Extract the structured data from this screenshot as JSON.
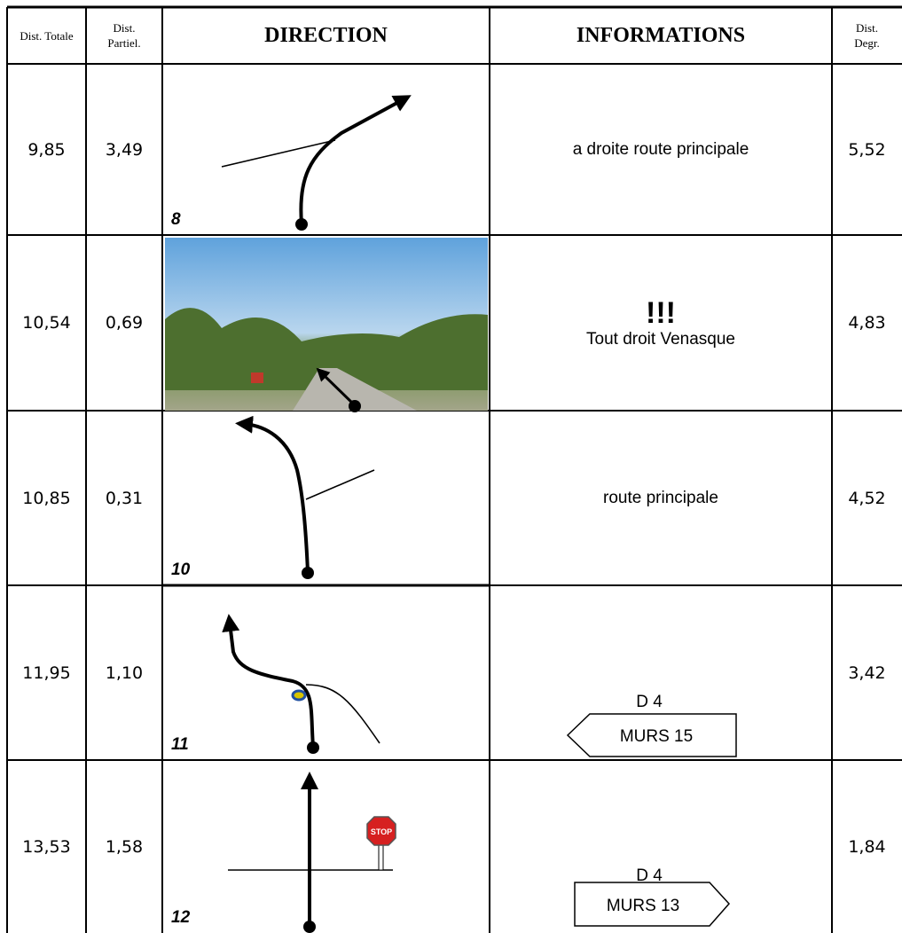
{
  "header": {
    "columns": [
      "Dist. Totale",
      "Dist. Partiel.",
      "DIRECTION",
      "INFORMATIONS",
      "Dist. Degr."
    ]
  },
  "rows": [
    {
      "total": "9,85",
      "partial": "3,49",
      "step": "8",
      "info": [
        "a droite route principale"
      ],
      "degr": "5,52"
    },
    {
      "total": "10,54",
      "partial": "0,69",
      "info": [
        "!!!",
        "Tout droit Venasque"
      ],
      "degr": "4,83"
    },
    {
      "total": "10,85",
      "partial": "0,31",
      "step": "10",
      "info": [
        "route principale"
      ],
      "degr": "4,52"
    },
    {
      "total": "11,95",
      "partial": "1,10",
      "step": "11",
      "info": [
        "D 4"
      ],
      "sign": "MURS 15",
      "degr": "3,42"
    },
    {
      "total": "13,53",
      "partial": "1,58",
      "step": "12",
      "info": [
        "D 4"
      ],
      "sign": "MURS 13",
      "stop": "STOP",
      "degr": "1,84"
    }
  ]
}
